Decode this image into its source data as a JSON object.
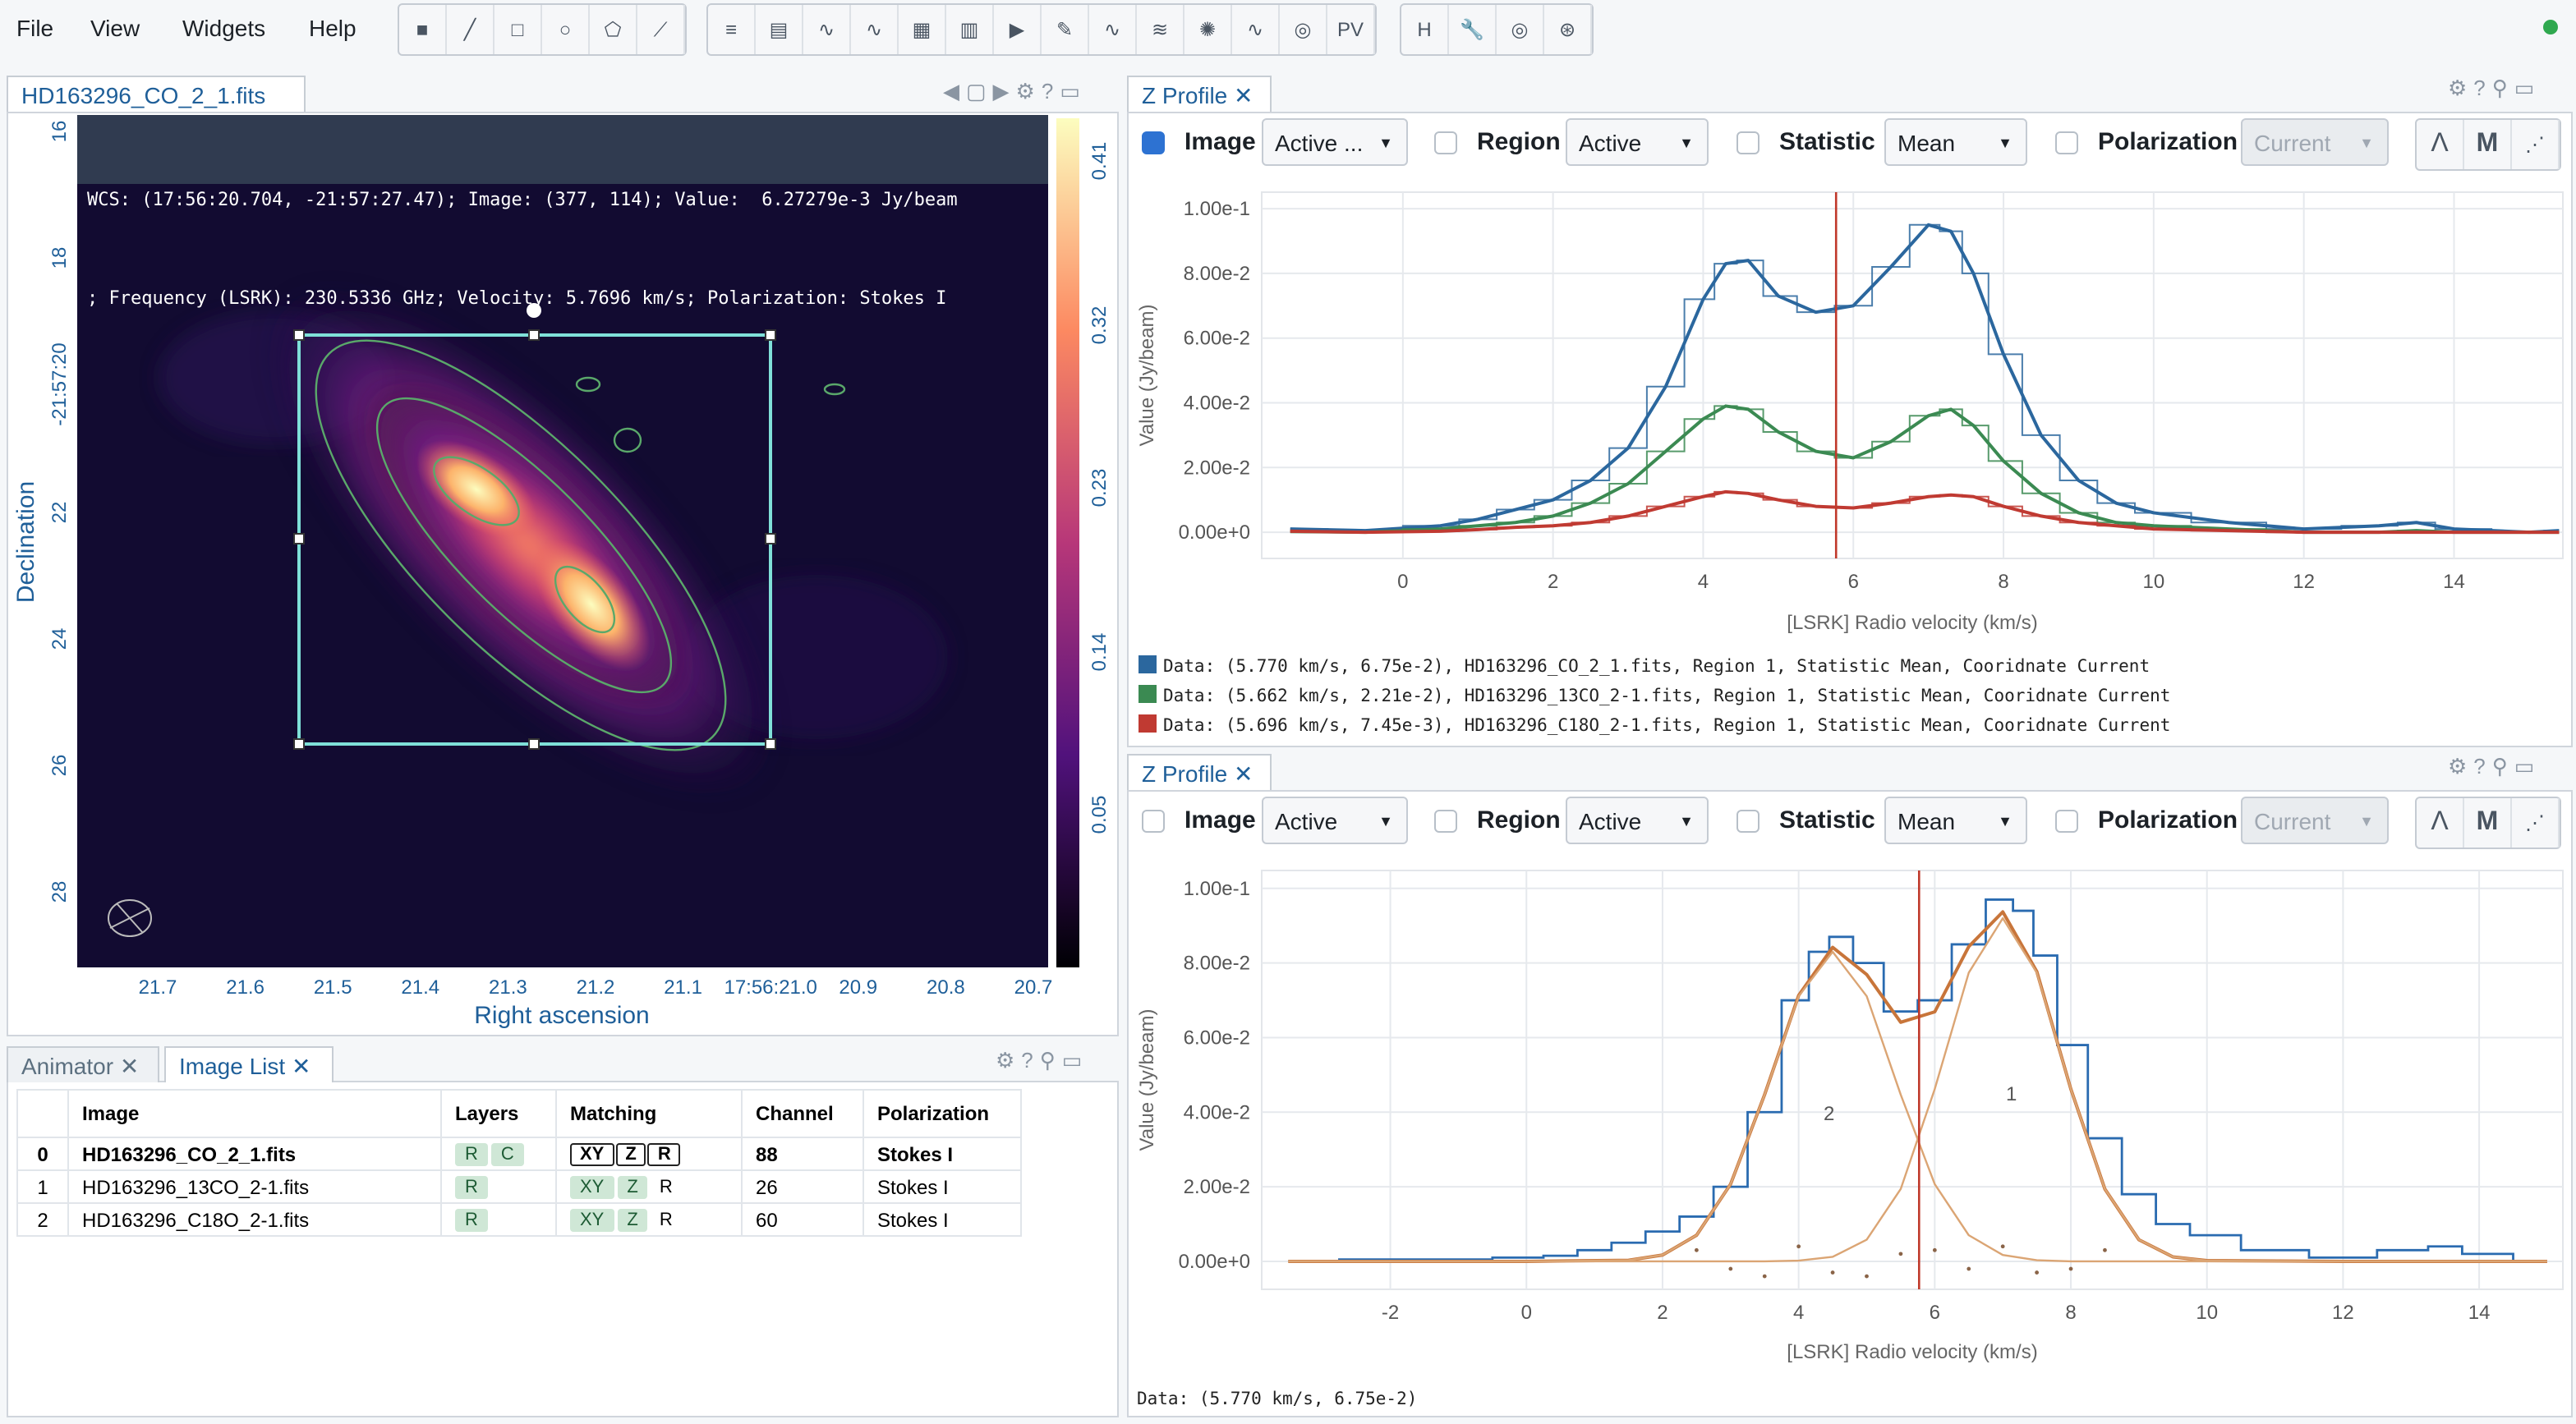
{
  "menu": [
    "File",
    "View",
    "Widgets",
    "Help"
  ],
  "toolbar": {
    "pv": "PV"
  },
  "image_viewer": {
    "tab": "HD163296_CO_2_1.fits",
    "cursor_info": [
      "WCS: (17:56:20.704, -21:57:27.47); Image: (377, 114); Value:  6.27279e-3 Jy/beam",
      "; Frequency (LSRK): 230.5336 GHz; Velocity: 5.7696 km/s; Polarization: Stokes I"
    ],
    "y_label": "Declination",
    "x_label": "Right ascension",
    "y_ticks": [
      "16",
      "18",
      "-21:57:20",
      "22",
      "24",
      "26",
      "28"
    ],
    "x_ticks": [
      "21.7",
      "21.6",
      "21.5",
      "21.4",
      "21.3",
      "21.2",
      "21.1",
      "17:56:21.0",
      "20.9",
      "20.8",
      "20.7"
    ],
    "colorbar_ticks": [
      "0.41",
      "0.32",
      "0.23",
      "0.14",
      "0.05"
    ]
  },
  "image_list": {
    "tabs": [
      "Animator",
      "Image List"
    ],
    "columns": [
      "Image",
      "Layers",
      "Matching",
      "Channel",
      "Polarization"
    ],
    "rows": [
      {
        "index": "0",
        "image": "HD163296_CO_2_1.fits",
        "layers": [
          "R",
          "C"
        ],
        "matching": [
          "XY",
          "Z",
          "R"
        ],
        "channel": "88",
        "polarization": "Stokes I"
      },
      {
        "index": "1",
        "image": "HD163296_13CO_2-1.fits",
        "layers": [
          "R"
        ],
        "matching": [
          "XY",
          "Z",
          "R"
        ],
        "channel": "26",
        "polarization": "Stokes I"
      },
      {
        "index": "2",
        "image": "HD163296_C18O_2-1.fits",
        "layers": [
          "R"
        ],
        "matching": [
          "XY",
          "Z",
          "R"
        ],
        "channel": "60",
        "polarization": "Stokes I"
      }
    ]
  },
  "z_profiles": [
    {
      "tab": "Z Profile",
      "controls": [
        {
          "label": "Image",
          "checked": true,
          "dropdown": "Active ..."
        },
        {
          "label": "Region",
          "checked": false,
          "dropdown": "Active"
        },
        {
          "label": "Statistic",
          "checked": false,
          "dropdown": "Mean"
        },
        {
          "label": "Polarization",
          "checked": false,
          "dropdown": "Current"
        }
      ],
      "button": "M",
      "chart_data": {
        "type": "line",
        "y_label": "Value (Jy/beam)",
        "x_label": "[LSRK] Radio velocity (km/s)",
        "xlim": [
          -1.88,
          15.45
        ],
        "ylim": [
          -0.0081,
          0.1051
        ],
        "xticks": [
          0,
          2,
          4,
          6,
          8,
          10,
          12,
          14
        ],
        "yticks": [
          {
            "value": 0,
            "label": "0.00e+0"
          },
          {
            "value": 0.02,
            "label": "2.00e-2"
          },
          {
            "value": 0.04,
            "label": "4.00e-2"
          },
          {
            "value": 0.06,
            "label": "6.00e-2"
          },
          {
            "value": 0.08,
            "label": "8.00e-2"
          },
          {
            "value": 0.1,
            "label": "1.00e-1"
          }
        ],
        "grid": true,
        "marker": 5.77,
        "series": [
          {
            "name": "Data: (5.770 km/s, 6.75e-2), HD163296_CO_2_1.fits, Region 1, Statistic Mean, Cooridnate Current",
            "color": "#2b679e",
            "style": "step+line",
            "x": [
              -1.5,
              -0.5,
              0.5,
              1,
              1.5,
              2,
              2.5,
              3,
              3.5,
              4,
              4.3,
              4.6,
              5,
              5.5,
              6,
              6.5,
              7,
              7.3,
              7.6,
              8,
              8.5,
              9,
              9.5,
              10,
              11,
              12,
              13,
              13.5,
              14,
              15,
              15.4
            ],
            "values": [
              0.001,
              0.0005,
              0.002,
              0.004,
              0.007,
              0.01,
              0.016,
              0.026,
              0.045,
              0.072,
              0.083,
              0.084,
              0.073,
              0.068,
              0.07,
              0.082,
              0.095,
              0.093,
              0.08,
              0.055,
              0.03,
              0.016,
              0.009,
              0.006,
              0.003,
              0.001,
              0.002,
              0.003,
              0.001,
              0,
              0.0005
            ]
          },
          {
            "name": "Data: (5.662 km/s, 2.21e-2), HD163296_13CO_2-1.fits, Region 1, Statistic Mean, Cooridnate Current",
            "color": "#3b8a52",
            "style": "step+line",
            "x": [
              -1.5,
              -0.5,
              0.5,
              1,
              1.5,
              2,
              2.5,
              3,
              3.5,
              4,
              4.3,
              4.6,
              5,
              5.5,
              6,
              6.5,
              7,
              7.3,
              7.6,
              8,
              8.5,
              9,
              9.5,
              10,
              11,
              12,
              13,
              13.5,
              14,
              15,
              15.4
            ],
            "values": [
              0.0002,
              0,
              0.001,
              0.002,
              0.003,
              0.005,
              0.009,
              0.015,
              0.025,
              0.035,
              0.039,
              0.038,
              0.031,
              0.025,
              0.023,
              0.028,
              0.036,
              0.038,
              0.033,
              0.022,
              0.012,
              0.006,
              0.003,
              0.002,
              0.001,
              0,
              0,
              0.0005,
              0,
              0,
              0
            ]
          },
          {
            "name": "Data: (5.696 km/s, 7.45e-3), HD163296_C18O_2-1.fits, Region 1, Statistic Mean, Cooridnate Current",
            "color": "#c03a32",
            "style": "step+line",
            "x": [
              -1.5,
              -0.5,
              0.5,
              1,
              1.5,
              2,
              2.5,
              3,
              3.5,
              4,
              4.3,
              4.6,
              5,
              5.5,
              6,
              6.5,
              7,
              7.3,
              7.6,
              8,
              8.5,
              9,
              9.5,
              10,
              11,
              12,
              13,
              13.5,
              14,
              15,
              15.4
            ],
            "values": [
              0.0003,
              0,
              0.0003,
              0.0008,
              0.0015,
              0.002,
              0.003,
              0.005,
              0.008,
              0.011,
              0.0125,
              0.012,
              0.01,
              0.008,
              0.0075,
              0.009,
              0.011,
              0.0115,
              0.011,
              0.008,
              0.005,
              0.003,
              0.002,
              0.001,
              0.0005,
              0,
              0,
              0,
              0,
              0,
              0
            ]
          }
        ]
      }
    },
    {
      "tab": "Z Profile",
      "controls": [
        {
          "label": "Image",
          "checked": false,
          "dropdown": "Active"
        },
        {
          "label": "Region",
          "checked": false,
          "dropdown": "Active"
        },
        {
          "label": "Statistic",
          "checked": false,
          "dropdown": "Mean"
        },
        {
          "label": "Polarization",
          "checked": false,
          "dropdown": "Current"
        }
      ],
      "button": "M",
      "footer": "Data: (5.770 km/s, 6.75e-2)",
      "annotations": [
        "1",
        "2"
      ],
      "chart_data": {
        "type": "line",
        "y_label": "Value (Jy/beam)",
        "x_label": "[LSRK] Radio velocity (km/s)",
        "xlim": [
          -3.89,
          15.23
        ],
        "ylim": [
          -0.0075,
          0.1048
        ],
        "xticks": [
          -2,
          0,
          2,
          4,
          6,
          8,
          10,
          12,
          14
        ],
        "yticks": [
          {
            "value": 0,
            "label": "0.00e+0"
          },
          {
            "value": 0.02,
            "label": "2.00e-2"
          },
          {
            "value": 0.04,
            "label": "4.00e-2"
          },
          {
            "value": 0.06,
            "label": "6.00e-2"
          },
          {
            "value": 0.08,
            "label": "8.00e-2"
          },
          {
            "value": 0.1,
            "label": "1.00e-1"
          }
        ],
        "grid": true,
        "marker": 5.77,
        "series": [
          {
            "color": "#2a6bb0",
            "style": "step",
            "x": [
              -3.5,
              -2,
              -1,
              0,
              0.5,
              1,
              1.5,
              2,
              2.5,
              3,
              3.5,
              4,
              4.3,
              4.6,
              5,
              5.5,
              6,
              6.5,
              7,
              7.3,
              7.6,
              8,
              8.5,
              9,
              9.5,
              10,
              11,
              12,
              13,
              13.5,
              14,
              15
            ],
            "values": [
              0,
              0.0005,
              0.0005,
              0.001,
              0.0015,
              0.003,
              0.005,
              0.008,
              0.012,
              0.02,
              0.04,
              0.07,
              0.083,
              0.087,
              0.08,
              0.067,
              0.07,
              0.085,
              0.097,
              0.094,
              0.082,
              0.058,
              0.033,
              0.018,
              0.01,
              0.007,
              0.003,
              0.001,
              0.003,
              0.004,
              0.002,
              0
            ]
          },
          {
            "color": "#c8753a",
            "style": "line",
            "x": [
              -3.5,
              0,
              1.5,
              2,
              2.5,
              3,
              3.5,
              4,
              4.5,
              5,
              5.5,
              6,
              6.5,
              7,
              7.5,
              8,
              8.5,
              9,
              9.5,
              10,
              12,
              15
            ],
            "values": [
              0,
              0,
              0.0003,
              0.0017,
              0.007,
              0.0207,
              0.0447,
              0.0713,
              0.0842,
              0.0769,
              0.0641,
              0.0669,
              0.0844,
              0.0937,
              0.0777,
              0.0462,
              0.0194,
              0.0058,
              0.0012,
              0.0002,
              0,
              0
            ]
          },
          {
            "color": "#dba574",
            "style": "line",
            "x": [
              -3.5,
              0,
              1.5,
              2,
              2.5,
              3,
              3.5,
              4,
              4.5,
              5,
              5.5,
              6,
              6.5,
              7,
              7.5,
              8,
              8.5,
              9,
              9.5,
              10,
              12,
              15
            ],
            "values": [
              0,
              0,
              0,
              0,
              0,
              0,
              0,
              0.0002,
              0.0012,
              0.0058,
              0.0194,
              0.0462,
              0.0774,
              0.092,
              0.0774,
              0.0462,
              0.0194,
              0.0058,
              0.0012,
              0.0002,
              0,
              0
            ]
          },
          {
            "color": "#dba574",
            "style": "line",
            "x": [
              -3.5,
              0,
              1.5,
              2,
              2.5,
              3,
              3.5,
              4,
              4.5,
              5,
              5.5,
              6,
              6.5,
              7,
              7.5,
              8,
              8.5,
              9,
              9.5,
              10,
              12,
              15
            ],
            "values": [
              0,
              0,
              0.0003,
              0.0017,
              0.007,
              0.0207,
              0.0447,
              0.0711,
              0.083,
              0.0711,
              0.0447,
              0.0207,
              0.007,
              0.0017,
              0.0003,
              0,
              0,
              0,
              0,
              0,
              0,
              0
            ]
          },
          {
            "color": "#8a6448",
            "style": "dots",
            "x": [
              2.5,
              3,
              3.5,
              4,
              4.5,
              5,
              5.5,
              6,
              6.5,
              7,
              7.5,
              8,
              8.5
            ],
            "values": [
              0.003,
              -0.002,
              -0.004,
              0.004,
              -0.003,
              -0.004,
              0.002,
              0.003,
              -0.002,
              0.004,
              -0.003,
              -0.002,
              0.003
            ]
          }
        ]
      }
    }
  ]
}
